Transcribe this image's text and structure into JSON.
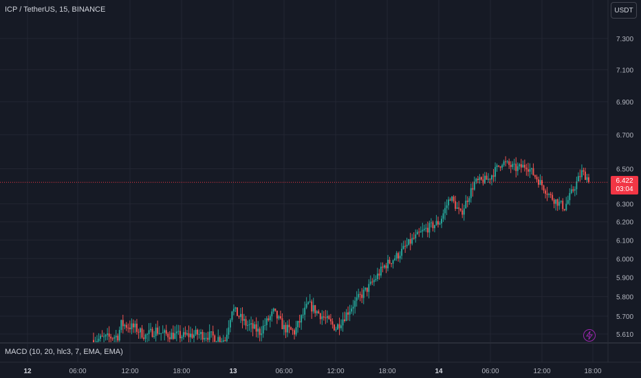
{
  "header": {
    "symbol_line": "ICP / TetherUS, 15, BINANCE",
    "currency_button": "USDT"
  },
  "indicator": {
    "macd_label": "MACD (10, 20, hlc3, 7, EMA, EMA)"
  },
  "price_label": {
    "price": "6.422",
    "countdown": "03:04"
  },
  "colors": {
    "background": "#161a25",
    "up": "#26a69a",
    "down": "#ef5350",
    "grid": "#232632",
    "price_line": "#f23645",
    "badge": "#9c27b0"
  },
  "icons": {
    "bolt": "lightning-bolt-icon"
  },
  "chart_data": {
    "type": "candlestick",
    "y_axis": {
      "ticks": [
        {
          "label": "7.300",
          "value": 7.3
        },
        {
          "label": "7.100",
          "value": 7.1
        },
        {
          "label": "6.900",
          "value": 6.9
        },
        {
          "label": "6.700",
          "value": 6.7
        },
        {
          "label": "6.500",
          "value": 6.5
        },
        {
          "label": "6.300",
          "value": 6.3
        },
        {
          "label": "6.200",
          "value": 6.2
        },
        {
          "label": "6.100",
          "value": 6.1
        },
        {
          "label": "6.000",
          "value": 6.0
        },
        {
          "label": "5.900",
          "value": 5.9
        },
        {
          "label": "5.800",
          "value": 5.8
        },
        {
          "label": "5.700",
          "value": 5.7
        },
        {
          "label": "5.610",
          "value": 5.61
        }
      ],
      "scale": "log"
    },
    "x_axis": {
      "ticks": [
        {
          "label": "12",
          "bold": true
        },
        {
          "label": "06:00"
        },
        {
          "label": "12:00"
        },
        {
          "label": "18:00"
        },
        {
          "label": "13",
          "bold": true
        },
        {
          "label": "06:00"
        },
        {
          "label": "12:00"
        },
        {
          "label": "18:00"
        },
        {
          "label": "14",
          "bold": true
        },
        {
          "label": "06:00"
        },
        {
          "label": "12:00"
        },
        {
          "label": "18:00"
        }
      ]
    },
    "last_price": 6.422,
    "series": [
      {
        "name": "ICP / TetherUS",
        "interval": "15",
        "anchors": [
          [
            0,
            5.58
          ],
          [
            14,
            5.6
          ],
          [
            16,
            5.66
          ],
          [
            24,
            5.64
          ],
          [
            30,
            5.6
          ],
          [
            36,
            5.63
          ],
          [
            40,
            5.61
          ],
          [
            52,
            5.6
          ],
          [
            60,
            5.61
          ],
          [
            68,
            5.6
          ],
          [
            76,
            5.58
          ],
          [
            80,
            5.74
          ],
          [
            88,
            5.66
          ],
          [
            96,
            5.62
          ],
          [
            104,
            5.72
          ],
          [
            110,
            5.64
          ],
          [
            116,
            5.62
          ],
          [
            124,
            5.76
          ],
          [
            132,
            5.7
          ],
          [
            140,
            5.64
          ],
          [
            150,
            5.76
          ],
          [
            160,
            5.86
          ],
          [
            168,
            5.96
          ],
          [
            176,
            6.02
          ],
          [
            184,
            6.1
          ],
          [
            192,
            6.16
          ],
          [
            200,
            6.2
          ],
          [
            206,
            6.34
          ],
          [
            212,
            6.24
          ],
          [
            220,
            6.42
          ],
          [
            228,
            6.44
          ],
          [
            236,
            6.54
          ],
          [
            244,
            6.5
          ],
          [
            250,
            6.52
          ],
          [
            258,
            6.42
          ],
          [
            264,
            6.34
          ],
          [
            272,
            6.28
          ],
          [
            276,
            6.36
          ],
          [
            282,
            6.48
          ],
          [
            286,
            6.44
          ]
        ],
        "count": 287,
        "note_hidden": ""
      }
    ]
  }
}
